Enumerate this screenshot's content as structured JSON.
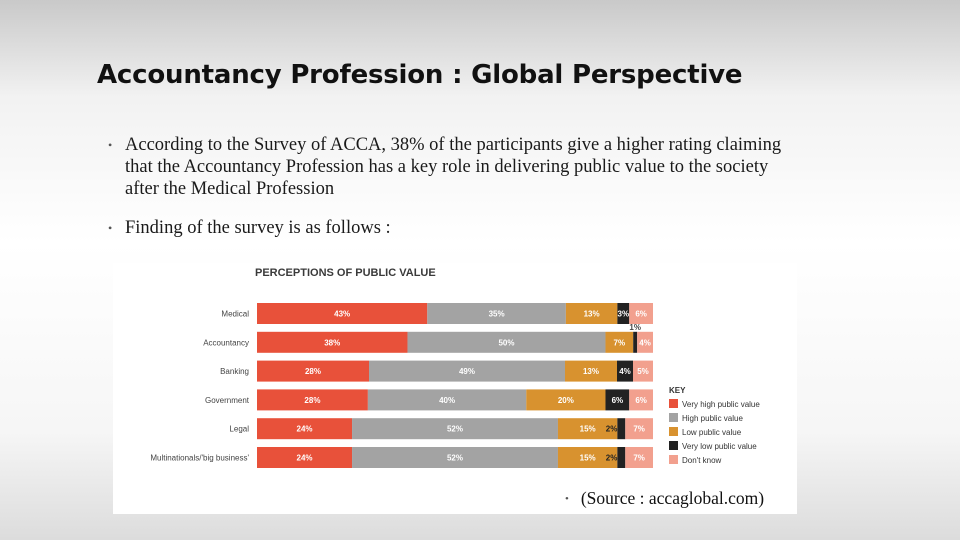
{
  "slide": {
    "title": "Accountancy Profession : Global Perspective",
    "bullets": [
      "According to the Survey of ACCA, 38% of the participants give a higher rating claiming that the Accountancy Profession has a key role in delivering public value to the society after the Medical Profession",
      "Finding of the survey is as follows :"
    ],
    "source": "(Source : accaglobal.com)"
  },
  "colors": {
    "very_high": "#e8513a",
    "high": "#a3a3a3",
    "low": "#d8922f",
    "very_low": "#222222",
    "dont_know": "#f2a08e"
  },
  "chart_data": {
    "type": "bar",
    "orientation": "horizontal",
    "stacked": true,
    "title": "PERCEPTIONS OF PUBLIC VALUE",
    "categories": [
      "Medical",
      "Accountancy",
      "Banking",
      "Government",
      "Legal",
      "Multinationals/'big business'"
    ],
    "legend_title": "KEY",
    "legend_position": "right",
    "series": [
      {
        "name": "Very high public value",
        "color_key": "very_high",
        "values": [
          43,
          38,
          28,
          28,
          24,
          24
        ],
        "labels": [
          "43%",
          "38%",
          "28%",
          "28%",
          "24%",
          "24%"
        ]
      },
      {
        "name": "High public value",
        "color_key": "high",
        "values": [
          35,
          50,
          49,
          40,
          52,
          52
        ],
        "labels": [
          "35%",
          "50%",
          "49%",
          "40%",
          "52%",
          "52%"
        ]
      },
      {
        "name": "Low public value",
        "color_key": "low",
        "values": [
          13,
          7,
          13,
          20,
          15,
          15
        ],
        "labels": [
          "13%",
          "7%",
          "13%",
          "20%",
          "15%",
          "15%"
        ]
      },
      {
        "name": "Very low public value",
        "color_key": "very_low",
        "values": [
          3,
          1,
          4,
          6,
          2,
          2
        ],
        "labels": [
          "3%",
          "1%",
          "4%",
          "6%",
          "2%",
          "2%"
        ]
      },
      {
        "name": "Don't know",
        "color_key": "dont_know",
        "values": [
          6,
          4,
          5,
          6,
          7,
          7
        ],
        "labels": [
          "6%",
          "4%",
          "5%",
          "6%",
          "7%",
          "7%"
        ]
      }
    ]
  }
}
